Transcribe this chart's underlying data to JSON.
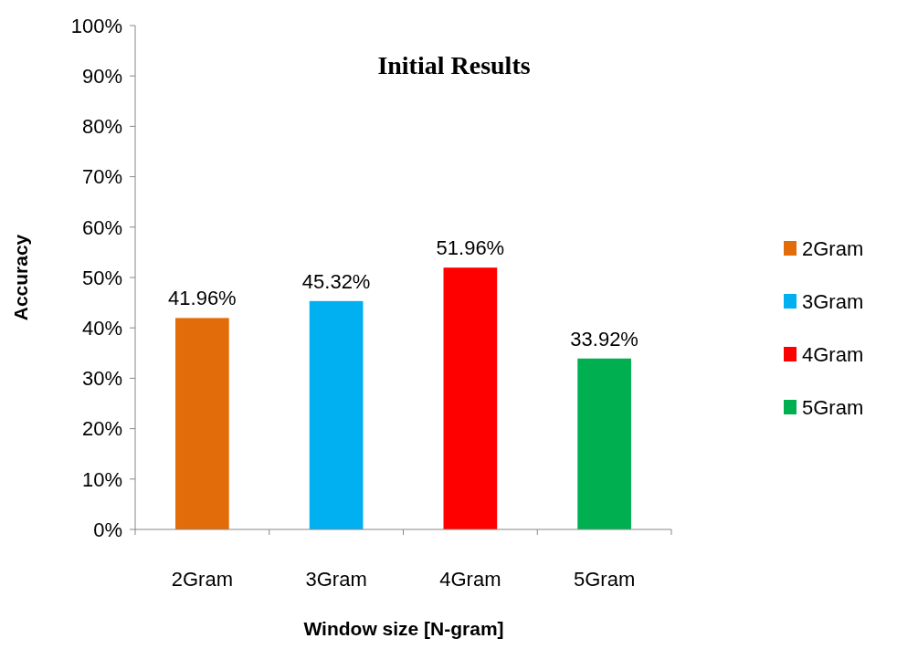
{
  "chart_data": {
    "type": "bar",
    "title": "Initial Results",
    "xlabel": "Window size [N-gram]",
    "ylabel": "Accuracy",
    "categories": [
      "2Gram",
      "3Gram",
      "4Gram",
      "5Gram"
    ],
    "stacked": true,
    "series": [
      {
        "name": "2Gram",
        "color": "#e36c0a",
        "values": [
          41.96,
          null,
          null,
          null
        ],
        "value_labels": [
          "41.96%",
          null,
          null,
          null
        ]
      },
      {
        "name": "3Gram",
        "color": "#00b0f0",
        "values": [
          null,
          45.32,
          null,
          null
        ],
        "value_labels": [
          null,
          "45.32%",
          null,
          null
        ]
      },
      {
        "name": "4Gram",
        "color": "#ff0000",
        "values": [
          null,
          null,
          51.96,
          null
        ],
        "value_labels": [
          null,
          null,
          "51.96%",
          null
        ]
      },
      {
        "name": "5Gram",
        "color": "#00b050",
        "values": [
          null,
          null,
          null,
          33.92
        ],
        "value_labels": [
          null,
          null,
          null,
          "33.92%"
        ]
      }
    ],
    "ylim": [
      0,
      100
    ],
    "yticks": [
      {
        "value": 0,
        "label": "0%"
      },
      {
        "value": 10,
        "label": "10%"
      },
      {
        "value": 20,
        "label": "20%"
      },
      {
        "value": 30,
        "label": "30%"
      },
      {
        "value": 40,
        "label": "40%"
      },
      {
        "value": 50,
        "label": "50%"
      },
      {
        "value": 60,
        "label": "60%"
      },
      {
        "value": 70,
        "label": "70%"
      },
      {
        "value": 80,
        "label": "80%"
      },
      {
        "value": 90,
        "label": "90%"
      },
      {
        "value": 100,
        "label": "100%"
      }
    ],
    "legend": "right"
  }
}
